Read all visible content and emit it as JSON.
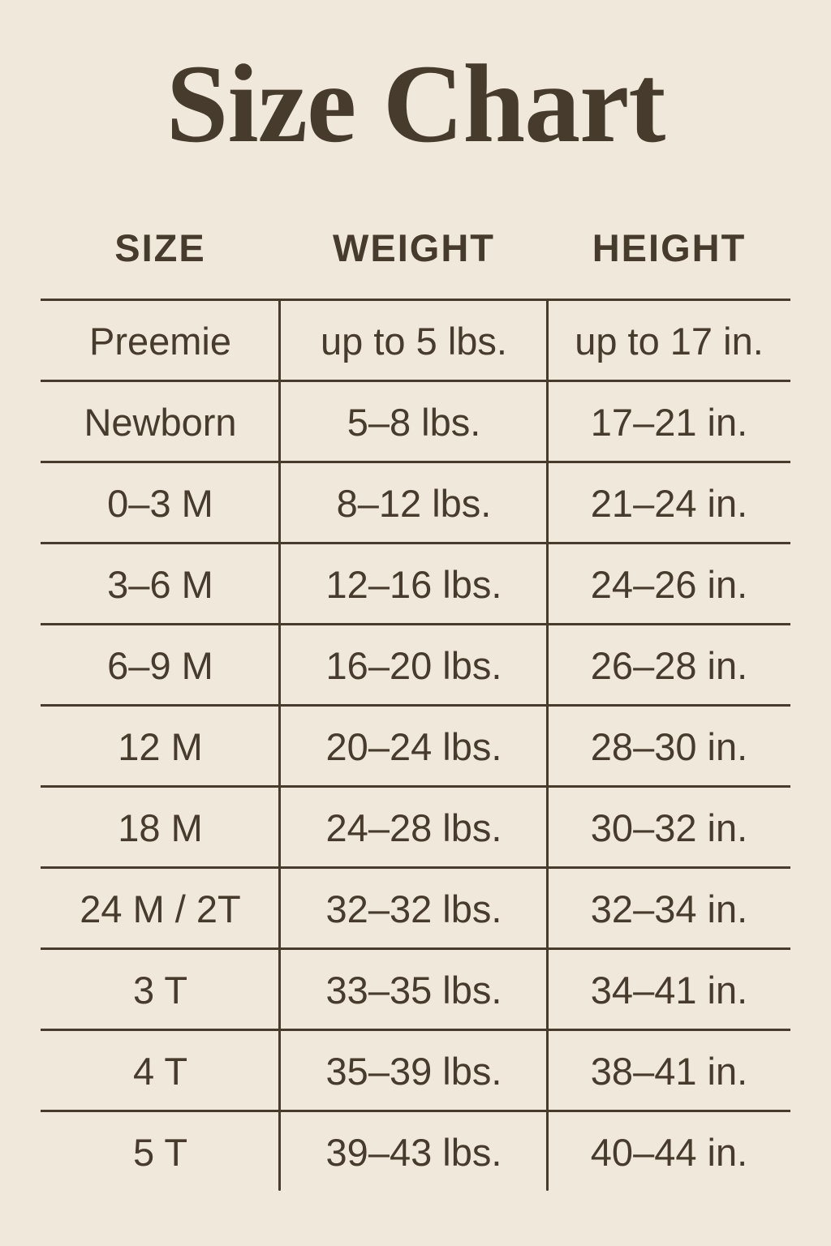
{
  "title": "Size Chart",
  "colors": {
    "background": "#f0e8db",
    "ink": "#463b2d"
  },
  "table": {
    "headers": [
      "SIZE",
      "WEIGHT",
      "HEIGHT"
    ],
    "rows": [
      {
        "size": "Preemie",
        "weight": "up to 5 lbs.",
        "height": "up to 17 in."
      },
      {
        "size": "Newborn",
        "weight": "5–8 lbs.",
        "height": "17–21 in."
      },
      {
        "size": "0–3 M",
        "weight": "8–12 lbs.",
        "height": "21–24 in."
      },
      {
        "size": "3–6 M",
        "weight": "12–16 lbs.",
        "height": "24–26 in."
      },
      {
        "size": "6–9 M",
        "weight": "16–20 lbs.",
        "height": "26–28 in."
      },
      {
        "size": "12 M",
        "weight": "20–24 lbs.",
        "height": "28–30 in."
      },
      {
        "size": "18 M",
        "weight": "24–28 lbs.",
        "height": "30–32 in."
      },
      {
        "size": "24 M / 2T",
        "weight": "32–32 lbs.",
        "height": "32–34 in."
      },
      {
        "size": "3 T",
        "weight": "33–35 lbs.",
        "height": "34–41 in."
      },
      {
        "size": "4 T",
        "weight": "35–39 lbs.",
        "height": "38–41 in."
      },
      {
        "size": "5 T",
        "weight": "39–43 lbs.",
        "height": "40–44 in."
      }
    ]
  },
  "chart_data": {
    "type": "table",
    "title": "Size Chart",
    "columns": [
      "SIZE",
      "WEIGHT",
      "HEIGHT"
    ],
    "rows": [
      [
        "Preemie",
        "up to 5 lbs.",
        "up to 17 in."
      ],
      [
        "Newborn",
        "5–8 lbs.",
        "17–21 in."
      ],
      [
        "0–3 M",
        "8–12 lbs.",
        "21–24 in."
      ],
      [
        "3–6 M",
        "12–16 lbs.",
        "24–26 in."
      ],
      [
        "6–9 M",
        "16–20 lbs.",
        "26–28 in."
      ],
      [
        "12 M",
        "20–24 lbs.",
        "28–30 in."
      ],
      [
        "18 M",
        "24–28 lbs.",
        "30–32 in."
      ],
      [
        "24 M / 2T",
        "32–32 lbs.",
        "32–34 in."
      ],
      [
        "3 T",
        "33–35 lbs.",
        "34–41 in."
      ],
      [
        "4 T",
        "35–39 lbs.",
        "38–41 in."
      ],
      [
        "5 T",
        "39–43 lbs.",
        "40–44 in."
      ]
    ]
  }
}
